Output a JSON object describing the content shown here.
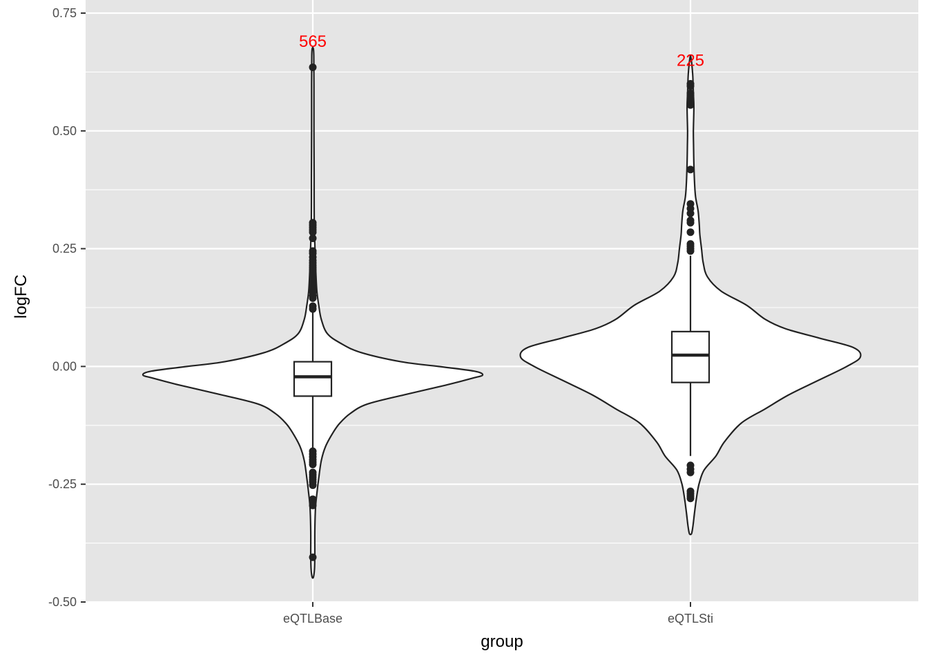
{
  "chart_data": {
    "type": "violin",
    "xlabel": "group",
    "ylabel": "logFC",
    "ylim": [
      -0.5,
      0.75
    ],
    "yticks": [
      -0.5,
      -0.25,
      0.0,
      0.25,
      0.5,
      0.75
    ],
    "ytick_labels": [
      "-0.50",
      "-0.25",
      "0.00",
      "0.25",
      "0.50",
      "0.75"
    ],
    "grid": true,
    "colors": {
      "panel": "#e5e5e5",
      "grid": "#ffffff",
      "violin_fill": "#ffffff",
      "line": "#222222",
      "count_label": "#ff0000"
    },
    "groups": [
      {
        "name": "eQTLBase",
        "count_label": "565",
        "count_label_y": 0.69,
        "box": {
          "q1": -0.063,
          "median": -0.022,
          "q3": 0.01,
          "whisker_low": -0.18,
          "whisker_high": 0.12
        },
        "outliers": [
          0.635,
          0.305,
          0.3,
          0.295,
          0.29,
          0.285,
          0.272,
          0.245,
          0.24,
          0.232,
          0.225,
          0.22,
          0.215,
          0.21,
          0.205,
          0.2,
          0.195,
          0.19,
          0.185,
          0.18,
          0.172,
          0.165,
          0.158,
          0.15,
          0.145,
          0.128,
          0.122,
          -0.18,
          -0.186,
          -0.192,
          -0.198,
          -0.203,
          -0.208,
          -0.225,
          -0.23,
          -0.235,
          -0.24,
          -0.245,
          -0.252,
          -0.282,
          -0.288,
          -0.295,
          -0.405
        ],
        "density": [
          [
            -0.447,
            0.004
          ],
          [
            -0.43,
            0.01
          ],
          [
            -0.4,
            0.012
          ],
          [
            -0.35,
            0.012
          ],
          [
            -0.3,
            0.016
          ],
          [
            -0.27,
            0.024
          ],
          [
            -0.24,
            0.034
          ],
          [
            -0.2,
            0.05
          ],
          [
            -0.17,
            0.075
          ],
          [
            -0.14,
            0.12
          ],
          [
            -0.12,
            0.16
          ],
          [
            -0.1,
            0.22
          ],
          [
            -0.08,
            0.32
          ],
          [
            -0.06,
            0.54
          ],
          [
            -0.04,
            0.78
          ],
          [
            -0.025,
            0.94
          ],
          [
            -0.018,
            1.0
          ],
          [
            -0.01,
            0.95
          ],
          [
            0.0,
            0.74
          ],
          [
            0.01,
            0.52
          ],
          [
            0.03,
            0.28
          ],
          [
            0.05,
            0.16
          ],
          [
            0.07,
            0.085
          ],
          [
            0.1,
            0.05
          ],
          [
            0.13,
            0.035
          ],
          [
            0.16,
            0.024
          ],
          [
            0.2,
            0.018
          ],
          [
            0.25,
            0.013
          ],
          [
            0.3,
            0.009
          ],
          [
            0.35,
            0.008
          ],
          [
            0.4,
            0.008
          ],
          [
            0.5,
            0.007
          ],
          [
            0.6,
            0.007
          ],
          [
            0.66,
            0.006
          ],
          [
            0.675,
            0.003
          ]
        ]
      },
      {
        "name": "eQTLSti",
        "count_label": "225",
        "count_label_y": 0.65,
        "box": {
          "q1": -0.034,
          "median": 0.024,
          "q3": 0.074,
          "whisker_low": -0.19,
          "whisker_high": 0.235
        },
        "outliers": [
          0.6,
          0.595,
          0.58,
          0.575,
          0.57,
          0.565,
          0.555,
          0.418,
          0.345,
          0.335,
          0.325,
          0.31,
          0.305,
          0.285,
          0.26,
          0.255,
          0.25,
          0.245,
          -0.21,
          -0.218,
          -0.225,
          -0.265,
          -0.27,
          -0.275,
          -0.28
        ],
        "density": [
          [
            -0.355,
            0.006
          ],
          [
            -0.34,
            0.014
          ],
          [
            -0.31,
            0.024
          ],
          [
            -0.28,
            0.035
          ],
          [
            -0.25,
            0.05
          ],
          [
            -0.22,
            0.08
          ],
          [
            -0.19,
            0.15
          ],
          [
            -0.16,
            0.2
          ],
          [
            -0.12,
            0.3
          ],
          [
            -0.09,
            0.44
          ],
          [
            -0.06,
            0.58
          ],
          [
            -0.03,
            0.75
          ],
          [
            0.0,
            0.92
          ],
          [
            0.02,
            1.0
          ],
          [
            0.04,
            0.96
          ],
          [
            0.06,
            0.76
          ],
          [
            0.08,
            0.56
          ],
          [
            0.1,
            0.44
          ],
          [
            0.13,
            0.33
          ],
          [
            0.16,
            0.18
          ],
          [
            0.19,
            0.1
          ],
          [
            0.22,
            0.075
          ],
          [
            0.25,
            0.065
          ],
          [
            0.28,
            0.055
          ],
          [
            0.3,
            0.052
          ],
          [
            0.33,
            0.045
          ],
          [
            0.36,
            0.03
          ],
          [
            0.39,
            0.024
          ],
          [
            0.43,
            0.02
          ],
          [
            0.47,
            0.018
          ],
          [
            0.5,
            0.017
          ],
          [
            0.55,
            0.02
          ],
          [
            0.58,
            0.017
          ],
          [
            0.62,
            0.013
          ],
          [
            0.655,
            0.003
          ]
        ]
      }
    ]
  }
}
